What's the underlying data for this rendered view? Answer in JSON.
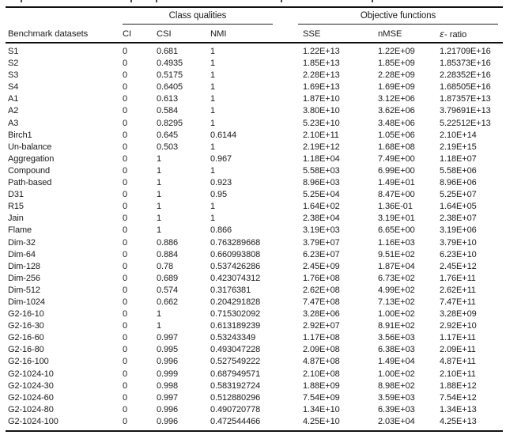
{
  "table": {
    "group_headers": {
      "class_qualities": "Class qualities",
      "objective_functions": "Objective functions"
    },
    "columns": {
      "benchmark": "Benchmark datasets",
      "ci": "CI",
      "csi": "CSI",
      "nmi": "NMI",
      "sse": "SSE",
      "nmse": "nMSE",
      "eps_symbol": "ε",
      "eps_suffix": "- ratio"
    },
    "rows": [
      [
        "S1",
        "0",
        "0.681",
        "1",
        "1.22E+13",
        "1.22E+09",
        "1.21709E+16"
      ],
      [
        "S2",
        "0",
        "0.4935",
        "1",
        "1.85E+13",
        "1.85E+09",
        "1.85373E+16"
      ],
      [
        "S3",
        "0",
        "0.5175",
        "1",
        "2.28E+13",
        "2.28E+09",
        "2.28352E+16"
      ],
      [
        "S4",
        "0",
        "0.6405",
        "1",
        "1.69E+13",
        "1.69E+09",
        "1.68505E+16"
      ],
      [
        "A1",
        "0",
        "0.613",
        "1",
        "1.87E+10",
        "3.12E+06",
        "1.87357E+13"
      ],
      [
        "A2",
        "0",
        "0.584",
        "1",
        "3.80E+10",
        "3.62E+06",
        "3.79691E+13"
      ],
      [
        "A3",
        "0",
        "0.8295",
        "1",
        "5.23E+10",
        "3.48E+06",
        "5.22512E+13"
      ],
      [
        "Birch1",
        "0",
        "0.645",
        "0.6144",
        "2.10E+11",
        "1.05E+06",
        "2.10E+14"
      ],
      [
        "Un-balance",
        "0",
        "0.503",
        "1",
        "2.19E+12",
        "1.68E+08",
        "2.19E+15"
      ],
      [
        "Aggregation",
        "0",
        "1",
        "0.967",
        "1.18E+04",
        "7.49E+00",
        "1.18E+07"
      ],
      [
        "Compound",
        "0",
        "1",
        "1",
        "5.58E+03",
        "6.99E+00",
        "5.58E+06"
      ],
      [
        "Path-based",
        "0",
        "1",
        "0.923",
        "8.96E+03",
        "1.49E+01",
        "8.96E+06"
      ],
      [
        "D31",
        "0",
        "1",
        "0.95",
        "5.25E+04",
        "8.47E+00",
        "5.25E+07"
      ],
      [
        "R15",
        "0",
        "1",
        "1",
        "1.64E+02",
        "1.36E-01",
        "1.64E+05"
      ],
      [
        "Jain",
        "0",
        "1",
        "1",
        "2.38E+04",
        "3.19E+01",
        "2.38E+07"
      ],
      [
        "Flame",
        "0",
        "1",
        "0.866",
        "3.19E+03",
        "6.65E+00",
        "3.19E+06"
      ],
      [
        "Dim-32",
        "0",
        "0.886",
        "0.763289668",
        "3.79E+07",
        "1.16E+03",
        "3.79E+10"
      ],
      [
        "Dim-64",
        "0",
        "0.884",
        "0.660993808",
        "6.23E+07",
        "9.51E+02",
        "6.23E+10"
      ],
      [
        "Dim-128",
        "0",
        "0.78",
        "0.537426286",
        "2.45E+09",
        "1.87E+04",
        "2.45E+12"
      ],
      [
        "Dim-256",
        "0",
        "0.689",
        "0.423074312",
        "1.76E+08",
        "6.73E+02",
        "1.76E+11"
      ],
      [
        "Dim-512",
        "0",
        "0.574",
        "0.3176381",
        "2.62E+08",
        "4.99E+02",
        "2.62E+11"
      ],
      [
        "Dim-1024",
        "0",
        "0.662",
        "0.204291828",
        "7.47E+08",
        "7.13E+02",
        "7.47E+11"
      ],
      [
        "G2-16-10",
        "0",
        "1",
        "0.715302092",
        "3.28E+06",
        "1.00E+02",
        "3.28E+09"
      ],
      [
        "G2-16-30",
        "0",
        "1",
        "0.613189239",
        "2.92E+07",
        "8.91E+02",
        "2.92E+10"
      ],
      [
        "G2-16-60",
        "0",
        "0.997",
        "0.53243349",
        "1.17E+08",
        "3.56E+03",
        "1.17E+11"
      ],
      [
        "G2-16-80",
        "0",
        "0.995",
        "0.493047228",
        "2.09E+08",
        "6.38E+03",
        "2.09E+11"
      ],
      [
        "G2-16-100",
        "0",
        "0.996",
        "0.527549222",
        "4.87E+08",
        "1.49E+04",
        "4.87E+11"
      ],
      [
        "G2-1024-10",
        "0",
        "0.999",
        "0.687949571",
        "2.10E+08",
        "1.00E+02",
        "2.10E+11"
      ],
      [
        "G2-1024-30",
        "0",
        "0.998",
        "0.583192724",
        "1.88E+09",
        "8.98E+02",
        "1.88E+12"
      ],
      [
        "G2-1024-60",
        "0",
        "0.997",
        "0.512880296",
        "7.54E+09",
        "3.59E+03",
        "7.54E+12"
      ],
      [
        "G2-1024-80",
        "0",
        "0.996",
        "0.490720778",
        "1.34E+10",
        "6.39E+03",
        "1.34E+13"
      ],
      [
        "G2-1024-100",
        "0",
        "0.996",
        "0.472544466",
        "4.25E+10",
        "2.03E+04",
        "4.25E+13"
      ]
    ]
  },
  "colors": {
    "text": "#1b1b1b",
    "rule": "#111111",
    "background": "#ffffff"
  }
}
